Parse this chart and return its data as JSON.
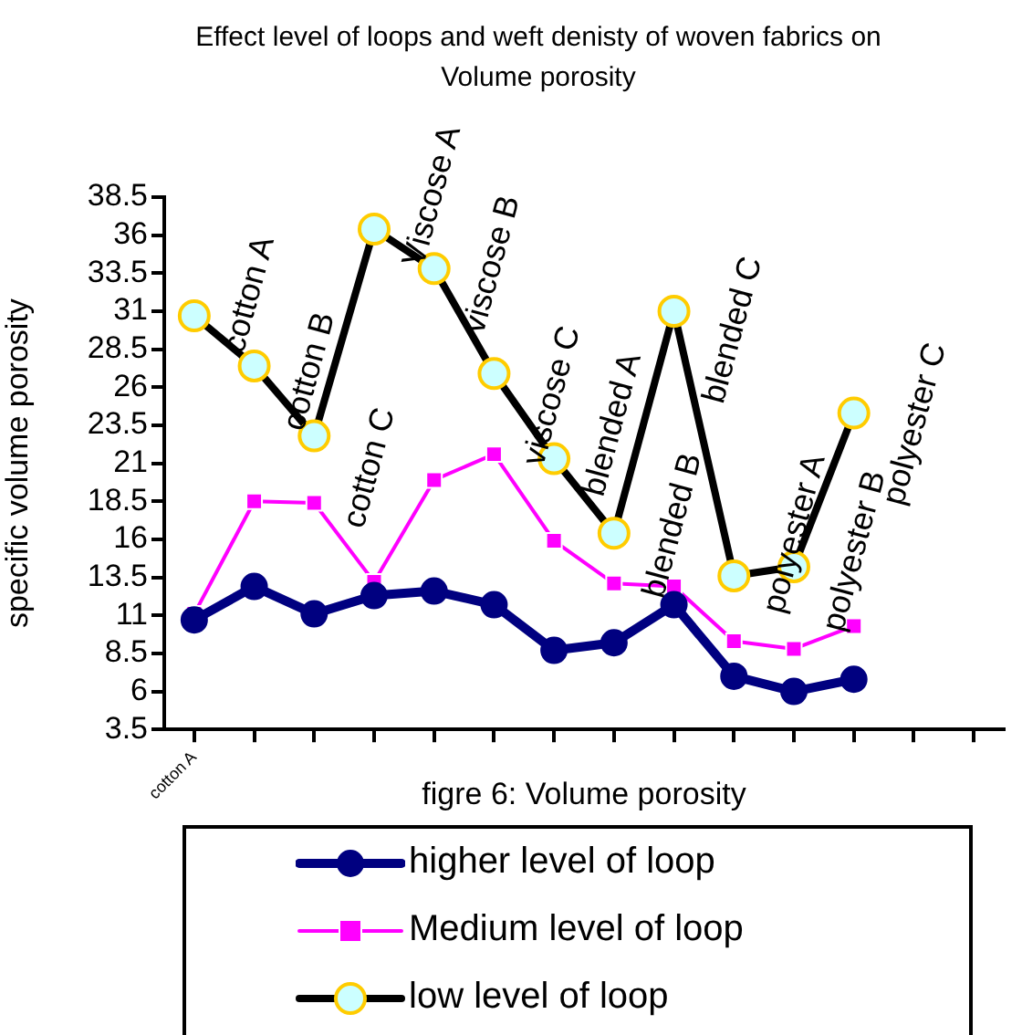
{
  "chart_data": {
    "type": "line",
    "title": "Effect level of loops  and weft denisty of woven fabrics on Volume porosity",
    "xlabel": "figre 6: Volume porosity",
    "ylabel": "specific volume porosity",
    "categories": [
      "cotton A",
      null,
      null,
      null,
      null,
      null,
      null,
      null,
      null,
      null,
      null,
      null,
      null,
      null
    ],
    "series": [
      {
        "name": "higher level of loop",
        "color": "#000080",
        "marker": "circle",
        "values": [
          10.7,
          12.9,
          11.1,
          12.3,
          12.6,
          11.7,
          8.7,
          9.2,
          11.7,
          7.0,
          6.0,
          6.8,
          null,
          null
        ]
      },
      {
        "name": "Medium level of loop",
        "color": "#ff00ff",
        "marker": "square",
        "values": [
          11.1,
          18.5,
          18.4,
          13.2,
          19.9,
          21.6,
          15.9,
          13.1,
          12.9,
          9.3,
          8.8,
          10.3,
          null,
          null
        ]
      },
      {
        "name": "low level of loop",
        "color": "#000000",
        "marker": "circle",
        "values": [
          30.7,
          27.4,
          22.8,
          36.4,
          33.8,
          26.9,
          21.3,
          16.4,
          31.0,
          13.6,
          14.2,
          24.3,
          null,
          null
        ]
      }
    ],
    "ylim": [
      3.5,
      38.5
    ],
    "yticks": [
      3.5,
      6,
      8.5,
      11,
      13.5,
      16,
      18.5,
      21,
      23.5,
      26,
      28.5,
      31,
      33.5,
      36,
      38.5
    ],
    "annotations": [
      "cotton A",
      "cotton B",
      "cotton C",
      "Viscose A",
      "viscose B",
      "viscose C",
      "blended A",
      "blended B",
      "blended C",
      "polyester A",
      "polyester B",
      "polyester C"
    ],
    "grid": false,
    "legend": "bottom",
    "line_style": "solid"
  }
}
